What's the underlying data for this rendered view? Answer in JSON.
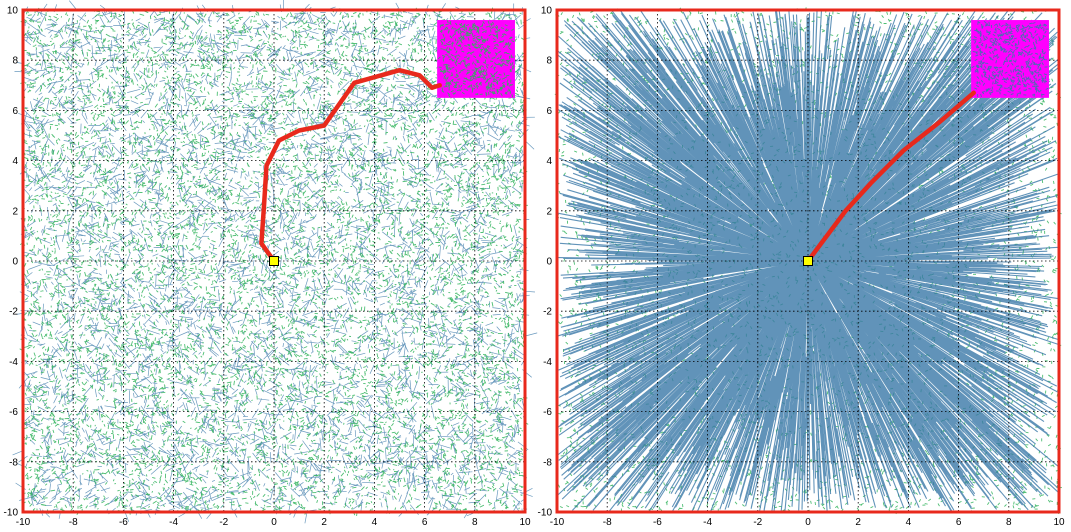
{
  "colors": {
    "frame": "#e8291c",
    "path": "#e8291c",
    "tree_edge": "#3a78a8",
    "tree_node": "#2fb35a",
    "goal_fill": "#ff00ff",
    "start_fill": "#ffff00",
    "grid": "#000000"
  },
  "chart_data": [
    {
      "type": "scatter",
      "title": "",
      "xlabel": "",
      "ylabel": "",
      "xlim": [
        -10,
        10
      ],
      "ylim": [
        -10,
        10
      ],
      "grid": true,
      "x_ticks": [
        "-10",
        "-8",
        "-6",
        "-4",
        "-2",
        "0",
        "2",
        "4",
        "6",
        "8",
        "10"
      ],
      "y_ticks": [
        "-10",
        "-8",
        "-6",
        "-4",
        "-2",
        "0",
        "2",
        "4",
        "6",
        "8",
        "10"
      ],
      "start": [
        0,
        0
      ],
      "goal_region": {
        "x": [
          6.5,
          9.6
        ],
        "y": [
          6.5,
          9.6
        ]
      },
      "tree_style": "dense short random edges",
      "path": [
        [
          0,
          0
        ],
        [
          -0.5,
          0.7
        ],
        [
          -0.4,
          2.2
        ],
        [
          -0.3,
          3.8
        ],
        [
          0.2,
          4.8
        ],
        [
          1,
          5.2
        ],
        [
          2,
          5.4
        ],
        [
          3.2,
          7.1
        ],
        [
          5,
          7.6
        ],
        [
          5.8,
          7.4
        ],
        [
          6.3,
          6.9
        ],
        [
          6.6,
          7.0
        ]
      ]
    },
    {
      "type": "scatter",
      "title": "",
      "xlabel": "",
      "ylabel": "",
      "xlim": [
        -10,
        10
      ],
      "ylim": [
        -10,
        10
      ],
      "grid": true,
      "x_ticks": [
        "-10",
        "-8",
        "-6",
        "-4",
        "-2",
        "0",
        "2",
        "4",
        "6",
        "8",
        "10"
      ],
      "y_ticks": [
        "-10",
        "-8",
        "-6",
        "-4",
        "-2",
        "0",
        "2",
        "4",
        "6",
        "8",
        "10"
      ],
      "start": [
        0,
        0
      ],
      "goal_region": {
        "x": [
          6.5,
          9.6
        ],
        "y": [
          6.5,
          9.6
        ]
      },
      "tree_style": "long radial edges from start",
      "path": [
        [
          0,
          0
        ],
        [
          1.5,
          2.0
        ],
        [
          2.5,
          3.1
        ],
        [
          3.8,
          4.4
        ],
        [
          5.2,
          5.5
        ],
        [
          6.6,
          6.7
        ]
      ]
    }
  ]
}
